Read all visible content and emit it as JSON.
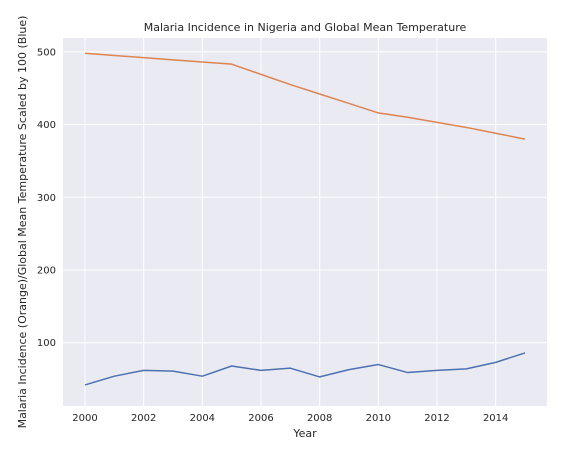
{
  "chart_data": {
    "type": "line",
    "title": "Malaria Incidence in Nigeria and Global Mean Temperature",
    "xlabel": "Year",
    "ylabel": "Malaria Incidence (Orange)/Global Mean Temperature Scaled by 100 (Blue)",
    "x": [
      2000,
      2001,
      2002,
      2003,
      2004,
      2005,
      2006,
      2007,
      2008,
      2009,
      2010,
      2011,
      2012,
      2013,
      2014,
      2015
    ],
    "xticks": [
      2000,
      2002,
      2004,
      2006,
      2008,
      2010,
      2012,
      2014
    ],
    "yticks": [
      100,
      200,
      300,
      400,
      500
    ],
    "xlim": [
      1999.25,
      2015.75
    ],
    "ylim": [
      13,
      519
    ],
    "grid": true,
    "series": [
      {
        "color": "#dd8452",
        "values": [
          498,
          495,
          492,
          489,
          486,
          483,
          469,
          455,
          442,
          429,
          416,
          410,
          403,
          396,
          388,
          380
        ]
      },
      {
        "color": "#4c72b0",
        "values": [
          42,
          54,
          62,
          61,
          54,
          68,
          62,
          65,
          53,
          63,
          70,
          59,
          62,
          64,
          73,
          86
        ]
      }
    ]
  }
}
